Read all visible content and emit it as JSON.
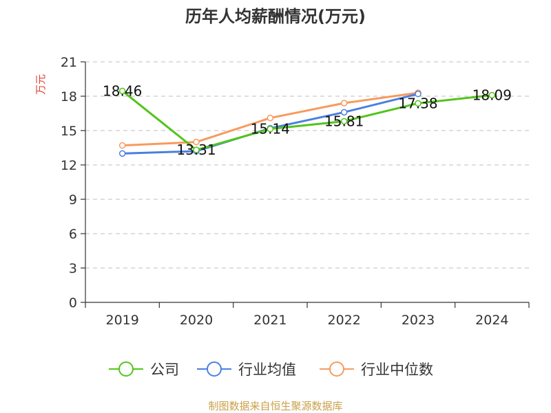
{
  "title": "历年人均薪酬情况(万元)",
  "source": "制图数据来自恒生聚源数据库",
  "chart_data": {
    "type": "line",
    "title": "历年人均薪酬情况(万元)",
    "ylabel": "万元",
    "xlabel": "",
    "categories": [
      "2019",
      "2020",
      "2021",
      "2022",
      "2023",
      "2024"
    ],
    "ylim": [
      0,
      21
    ],
    "yticks": [
      0,
      3,
      6,
      9,
      12,
      15,
      18,
      21
    ],
    "grid": true,
    "legend_position": "bottom",
    "series": [
      {
        "name": "公司",
        "color": "#52c41a",
        "values": [
          18.46,
          13.31,
          15.14,
          15.81,
          17.38,
          18.09
        ],
        "labels": [
          "18.46",
          "13.31",
          "15.14",
          "15.81",
          "17.38",
          "18.09"
        ]
      },
      {
        "name": "行业均值",
        "color": "#4a7fe0",
        "values": [
          13.0,
          13.2,
          15.2,
          16.6,
          18.2,
          null
        ]
      },
      {
        "name": "行业中位数",
        "color": "#f79a5e",
        "values": [
          13.7,
          14.0,
          16.1,
          17.4,
          18.3,
          null
        ]
      }
    ]
  }
}
